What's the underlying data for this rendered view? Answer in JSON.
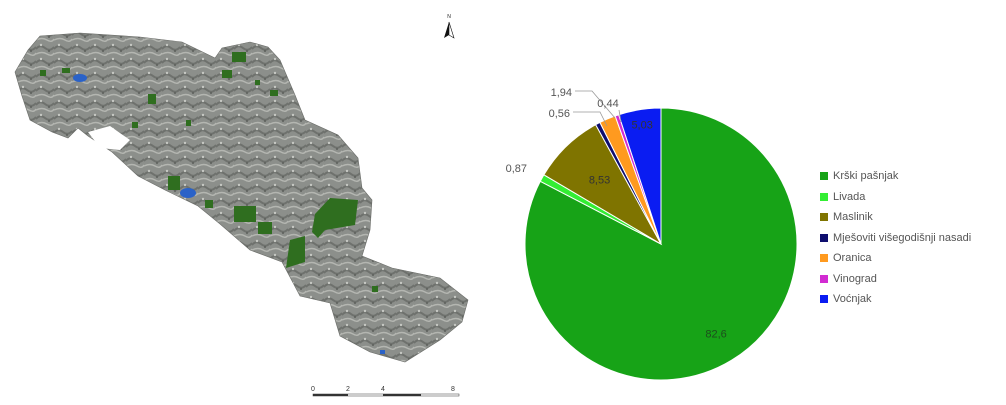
{
  "map": {
    "north_label": "N",
    "scale": {
      "ticks": [
        "0",
        "2",
        "4",
        "8"
      ]
    }
  },
  "chart_data": {
    "type": "pie",
    "start_angle_deg": 0,
    "direction": "clockwise",
    "slices": [
      {
        "label": "Krški pašnjak",
        "value": 82.6,
        "display": "82,6",
        "color": "#17a317"
      },
      {
        "label": "Livada",
        "value": 0.87,
        "display": "0,87",
        "color": "#33ee33"
      },
      {
        "label": "Maslinik",
        "value": 8.53,
        "display": "8,53",
        "color": "#7f7400"
      },
      {
        "label": "Mješoviti višegodišnji nasadi",
        "value": 0.56,
        "display": "0,56",
        "color": "#0e0e6e"
      },
      {
        "label": "Oranica",
        "value": 1.94,
        "display": "1,94",
        "color": "#ff9a1f"
      },
      {
        "label": "Vinograd",
        "value": 0.44,
        "display": "0,44",
        "color": "#d22bd2"
      },
      {
        "label": "Voćnjak",
        "value": 5.03,
        "display": "5,03",
        "color": "#0a1cf2"
      }
    ],
    "legend_position": "right"
  }
}
